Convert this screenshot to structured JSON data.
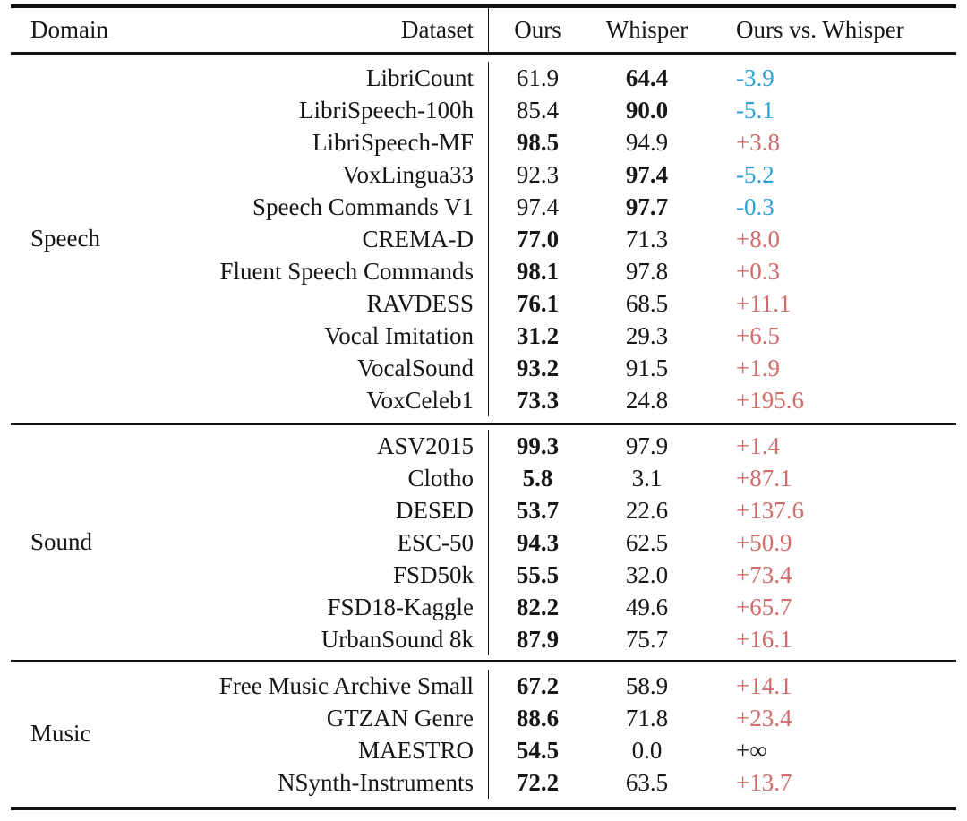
{
  "table": {
    "columns": {
      "domain": "Domain",
      "dataset": "Dataset",
      "ours": "Ours",
      "whisper": "Whisper",
      "delta": "Ours vs. Whisper"
    },
    "sections": [
      {
        "domain": "Speech",
        "rows": [
          {
            "dataset": "LibriCount",
            "ours": "61.9",
            "whisper": "64.4",
            "delta": "-3.9",
            "best": "whisper",
            "trend": "down"
          },
          {
            "dataset": "LibriSpeech-100h",
            "ours": "85.4",
            "whisper": "90.0",
            "delta": "-5.1",
            "best": "whisper",
            "trend": "down"
          },
          {
            "dataset": "LibriSpeech-MF",
            "ours": "98.5",
            "whisper": "94.9",
            "delta": "+3.8",
            "best": "ours",
            "trend": "up"
          },
          {
            "dataset": "VoxLingua33",
            "ours": "92.3",
            "whisper": "97.4",
            "delta": "-5.2",
            "best": "whisper",
            "trend": "down"
          },
          {
            "dataset": "Speech Commands V1",
            "ours": "97.4",
            "whisper": "97.7",
            "delta": "-0.3",
            "best": "whisper",
            "trend": "down"
          },
          {
            "dataset": "CREMA-D",
            "ours": "77.0",
            "whisper": "71.3",
            "delta": "+8.0",
            "best": "ours",
            "trend": "up"
          },
          {
            "dataset": "Fluent Speech Commands",
            "ours": "98.1",
            "whisper": "97.8",
            "delta": "+0.3",
            "best": "ours",
            "trend": "up"
          },
          {
            "dataset": "RAVDESS",
            "ours": "76.1",
            "whisper": "68.5",
            "delta": "+11.1",
            "best": "ours",
            "trend": "up"
          },
          {
            "dataset": "Vocal Imitation",
            "ours": "31.2",
            "whisper": "29.3",
            "delta": "+6.5",
            "best": "ours",
            "trend": "up"
          },
          {
            "dataset": "VocalSound",
            "ours": "93.2",
            "whisper": "91.5",
            "delta": "+1.9",
            "best": "ours",
            "trend": "up"
          },
          {
            "dataset": "VoxCeleb1",
            "ours": "73.3",
            "whisper": "24.8",
            "delta": "+195.6",
            "best": "ours",
            "trend": "up"
          }
        ]
      },
      {
        "domain": "Sound",
        "rows": [
          {
            "dataset": "ASV2015",
            "ours": "99.3",
            "whisper": "97.9",
            "delta": "+1.4",
            "best": "ours",
            "trend": "up"
          },
          {
            "dataset": "Clotho",
            "ours": "5.8",
            "whisper": "3.1",
            "delta": "+87.1",
            "best": "ours",
            "trend": "up"
          },
          {
            "dataset": "DESED",
            "ours": "53.7",
            "whisper": "22.6",
            "delta": "+137.6",
            "best": "ours",
            "trend": "up"
          },
          {
            "dataset": "ESC-50",
            "ours": "94.3",
            "whisper": "62.5",
            "delta": "+50.9",
            "best": "ours",
            "trend": "up"
          },
          {
            "dataset": "FSD50k",
            "ours": "55.5",
            "whisper": "32.0",
            "delta": "+73.4",
            "best": "ours",
            "trend": "up"
          },
          {
            "dataset": "FSD18-Kaggle",
            "ours": "82.2",
            "whisper": "49.6",
            "delta": "+65.7",
            "best": "ours",
            "trend": "up"
          },
          {
            "dataset": "UrbanSound 8k",
            "ours": "87.9",
            "whisper": "75.7",
            "delta": "+16.1",
            "best": "ours",
            "trend": "up"
          }
        ]
      },
      {
        "domain": "Music",
        "rows": [
          {
            "dataset": "Free Music Archive Small",
            "ours": "67.2",
            "whisper": "58.9",
            "delta": "+14.1",
            "best": "ours",
            "trend": "up"
          },
          {
            "dataset": "GTZAN Genre",
            "ours": "88.6",
            "whisper": "71.8",
            "delta": "+23.4",
            "best": "ours",
            "trend": "up"
          },
          {
            "dataset": "MAESTRO",
            "ours": "54.5",
            "whisper": "0.0",
            "delta": "+∞",
            "best": "ours",
            "trend": "neutral"
          },
          {
            "dataset": "NSynth-Instruments",
            "ours": "72.2",
            "whisper": "63.5",
            "delta": "+13.7",
            "best": "ours",
            "trend": "up"
          }
        ]
      }
    ]
  },
  "colors": {
    "positive_delta": "#d06d6b",
    "negative_delta": "#2fa2d6",
    "neutral_delta": "#161616",
    "text": "#161616",
    "rule": "#111111"
  }
}
